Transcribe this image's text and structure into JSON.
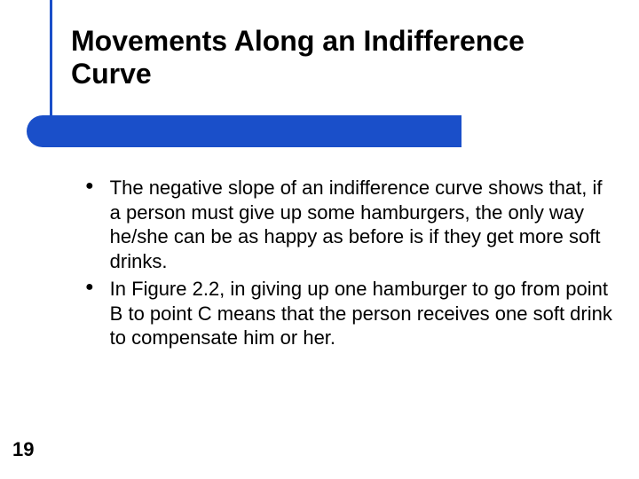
{
  "slide": {
    "title": "Movements Along an Indifference Curve",
    "bullets": [
      "The negative slope of an indifference curve shows that, if a person must give up some hamburgers, the only way he/she can be as happy as before is if they get more soft drinks.",
      "In Figure 2.2, in giving up one hamburger to go from point B to point C means that the person receives one soft drink to compensate him or her."
    ],
    "page_number": "19"
  },
  "colors": {
    "accent": "#1a4fc9",
    "text": "#000000",
    "background": "#ffffff"
  },
  "typography": {
    "title_fontsize": 32,
    "body_fontsize": 22,
    "title_weight": "bold"
  }
}
